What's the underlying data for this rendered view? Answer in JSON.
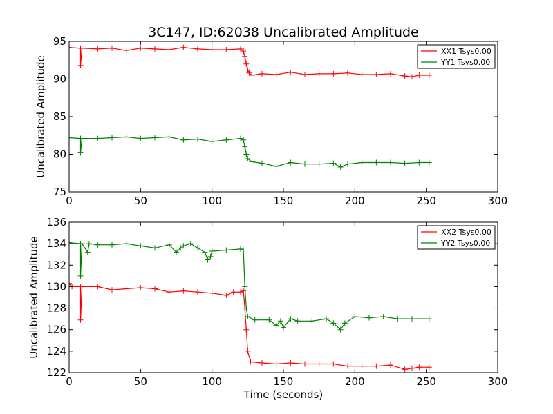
{
  "figure": {
    "title": "3C147, ID:62038 Uncalibrated Amplitude"
  },
  "chart_data": [
    {
      "type": "line",
      "title": "3C147, ID:62038 Uncalibrated Amplitude",
      "xlabel": "",
      "ylabel": "Uncalibrated Amplitude",
      "xlim": [
        0,
        300
      ],
      "ylim": [
        75,
        95
      ],
      "xticks": [
        0,
        50,
        100,
        150,
        200,
        250,
        300
      ],
      "yticks": [
        75,
        80,
        85,
        90,
        95
      ],
      "legend_position": "top-right",
      "grid": false,
      "series": [
        {
          "name": "XX1 Tsys0.00",
          "color": "#ff0000",
          "marker": "plus",
          "points": [
            [
              0,
              94.2
            ],
            [
              8,
              94.1
            ],
            [
              8,
              91.8
            ],
            [
              9,
              94.1
            ],
            [
              20,
              94.0
            ],
            [
              30,
              94.1
            ],
            [
              40,
              93.8
            ],
            [
              50,
              94.1
            ],
            [
              60,
              94.0
            ],
            [
              70,
              93.9
            ],
            [
              80,
              94.2
            ],
            [
              90,
              94.0
            ],
            [
              100,
              93.9
            ],
            [
              110,
              93.9
            ],
            [
              120,
              94.0
            ],
            [
              122,
              93.7
            ],
            [
              123,
              93.0
            ],
            [
              124,
              92.0
            ],
            [
              125,
              91.2
            ],
            [
              126,
              90.8
            ],
            [
              128,
              90.5
            ],
            [
              135,
              90.7
            ],
            [
              145,
              90.6
            ],
            [
              155,
              90.9
            ],
            [
              165,
              90.6
            ],
            [
              175,
              90.7
            ],
            [
              185,
              90.7
            ],
            [
              195,
              90.8
            ],
            [
              205,
              90.6
            ],
            [
              215,
              90.6
            ],
            [
              225,
              90.7
            ],
            [
              235,
              90.4
            ],
            [
              240,
              90.3
            ],
            [
              245,
              90.5
            ],
            [
              252,
              90.5
            ]
          ]
        },
        {
          "name": "YY1 Tsys0.00",
          "color": "#008000",
          "marker": "plus",
          "points": [
            [
              0,
              82.2
            ],
            [
              8,
              82.1
            ],
            [
              8,
              80.2
            ],
            [
              9,
              82.1
            ],
            [
              20,
              82.1
            ],
            [
              30,
              82.2
            ],
            [
              40,
              82.3
            ],
            [
              50,
              82.1
            ],
            [
              60,
              82.2
            ],
            [
              70,
              82.3
            ],
            [
              80,
              81.9
            ],
            [
              90,
              82.0
            ],
            [
              100,
              81.7
            ],
            [
              110,
              81.9
            ],
            [
              120,
              82.1
            ],
            [
              122,
              81.9
            ],
            [
              123,
              81.0
            ],
            [
              124,
              80.0
            ],
            [
              125,
              79.4
            ],
            [
              128,
              79.0
            ],
            [
              135,
              78.8
            ],
            [
              145,
              78.4
            ],
            [
              155,
              78.9
            ],
            [
              165,
              78.7
            ],
            [
              175,
              78.7
            ],
            [
              185,
              78.8
            ],
            [
              190,
              78.3
            ],
            [
              195,
              78.7
            ],
            [
              205,
              78.9
            ],
            [
              215,
              78.9
            ],
            [
              225,
              78.9
            ],
            [
              235,
              78.8
            ],
            [
              245,
              78.9
            ],
            [
              252,
              78.9
            ]
          ]
        }
      ]
    },
    {
      "type": "line",
      "title": "",
      "xlabel": "Time (seconds)",
      "ylabel": "Uncalibrated Amplitude",
      "xlim": [
        0,
        300
      ],
      "ylim": [
        122,
        136
      ],
      "xticks": [
        0,
        50,
        100,
        150,
        200,
        250,
        300
      ],
      "yticks": [
        122,
        124,
        126,
        128,
        130,
        132,
        134,
        136
      ],
      "legend_position": "top-right",
      "grid": false,
      "series": [
        {
          "name": "XX2 Tsys0.00",
          "color": "#ff0000",
          "marker": "plus",
          "points": [
            [
              0,
              130.3
            ],
            [
              2,
              130.0
            ],
            [
              8,
              130.0
            ],
            [
              8,
              126.9
            ],
            [
              9,
              130.0
            ],
            [
              20,
              130.0
            ],
            [
              30,
              129.7
            ],
            [
              40,
              129.8
            ],
            [
              50,
              129.9
            ],
            [
              60,
              129.8
            ],
            [
              70,
              129.5
            ],
            [
              80,
              129.6
            ],
            [
              90,
              129.5
            ],
            [
              100,
              129.4
            ],
            [
              110,
              129.2
            ],
            [
              115,
              129.5
            ],
            [
              120,
              129.5
            ],
            [
              122,
              129.6
            ],
            [
              123,
              128.0
            ],
            [
              124,
              126.0
            ],
            [
              125,
              124.0
            ],
            [
              127,
              123.0
            ],
            [
              135,
              122.9
            ],
            [
              145,
              122.8
            ],
            [
              155,
              122.9
            ],
            [
              165,
              122.8
            ],
            [
              175,
              122.8
            ],
            [
              185,
              122.8
            ],
            [
              195,
              122.6
            ],
            [
              205,
              122.6
            ],
            [
              215,
              122.6
            ],
            [
              225,
              122.7
            ],
            [
              235,
              122.3
            ],
            [
              240,
              122.4
            ],
            [
              245,
              122.5
            ],
            [
              252,
              122.5
            ]
          ]
        },
        {
          "name": "YY2 Tsys0.00",
          "color": "#008000",
          "marker": "plus",
          "points": [
            [
              0,
              134.1
            ],
            [
              8,
              134.0
            ],
            [
              8,
              131.0
            ],
            [
              9,
              134.0
            ],
            [
              13,
              133.2
            ],
            [
              14,
              134.0
            ],
            [
              20,
              133.9
            ],
            [
              30,
              133.9
            ],
            [
              40,
              134.0
            ],
            [
              50,
              133.8
            ],
            [
              60,
              133.6
            ],
            [
              70,
              133.9
            ],
            [
              75,
              133.2
            ],
            [
              78,
              133.6
            ],
            [
              80,
              133.8
            ],
            [
              85,
              134.0
            ],
            [
              90,
              133.6
            ],
            [
              95,
              133.2
            ],
            [
              97,
              132.5
            ],
            [
              99,
              132.8
            ],
            [
              100,
              133.3
            ],
            [
              110,
              133.4
            ],
            [
              120,
              133.5
            ],
            [
              122,
              133.4
            ],
            [
              123,
              130.0
            ],
            [
              124,
              128.0
            ],
            [
              125,
              127.2
            ],
            [
              130,
              126.9
            ],
            [
              140,
              126.9
            ],
            [
              145,
              126.4
            ],
            [
              148,
              126.8
            ],
            [
              150,
              126.2
            ],
            [
              155,
              127.0
            ],
            [
              160,
              126.8
            ],
            [
              170,
              126.8
            ],
            [
              180,
              127.0
            ],
            [
              185,
              126.6
            ],
            [
              190,
              126.0
            ],
            [
              193,
              126.6
            ],
            [
              200,
              127.2
            ],
            [
              210,
              127.1
            ],
            [
              220,
              127.2
            ],
            [
              230,
              127.0
            ],
            [
              240,
              127.0
            ],
            [
              252,
              127.0
            ]
          ]
        }
      ]
    }
  ]
}
